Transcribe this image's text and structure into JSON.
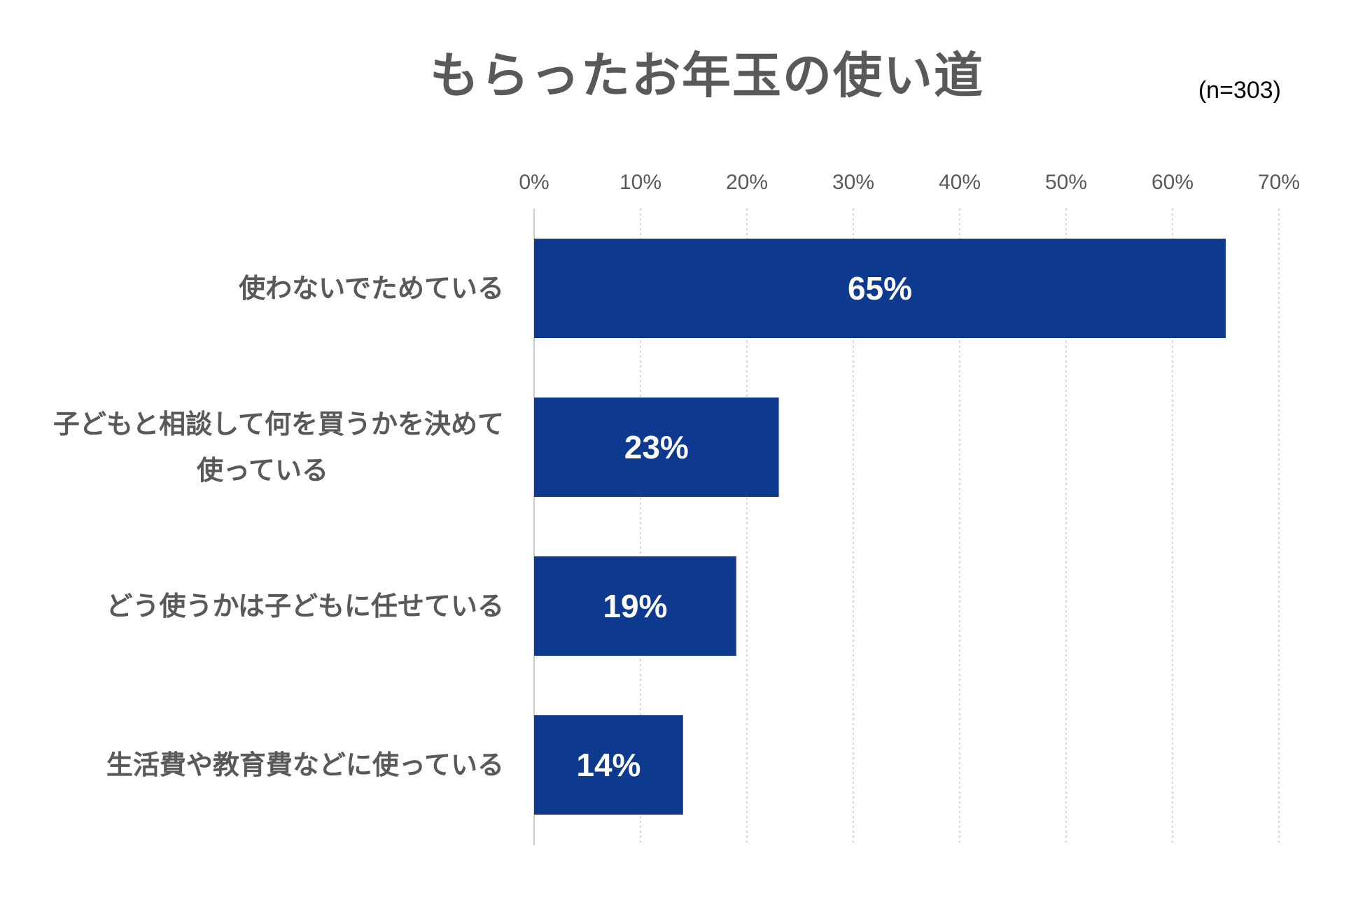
{
  "chart_data": {
    "type": "bar",
    "orientation": "horizontal",
    "title": "もらったお年玉の使い道",
    "note": "(n=303)",
    "categories": [
      [
        "使わないでためている"
      ],
      [
        "子どもと相談して何を買うかを決めて",
        "使っている"
      ],
      [
        "どう使うかは子どもに任せている"
      ],
      [
        "生活費や教育費などに使っている"
      ]
    ],
    "values": [
      65,
      23,
      19,
      14
    ],
    "data_labels": [
      "65%",
      "23%",
      "19%",
      "14%"
    ],
    "xlim": [
      0,
      70
    ],
    "x_ticks": [
      "0%",
      "10%",
      "20%",
      "30%",
      "40%",
      "50%",
      "60%",
      "70%"
    ],
    "x_axis_position": "top",
    "grid": "vertical dotted",
    "legend": "none",
    "colors": {
      "bar": "#0D3A8F",
      "grid": "#c8c8c8",
      "axis": "#cfcfcf",
      "text": "#595959"
    }
  }
}
